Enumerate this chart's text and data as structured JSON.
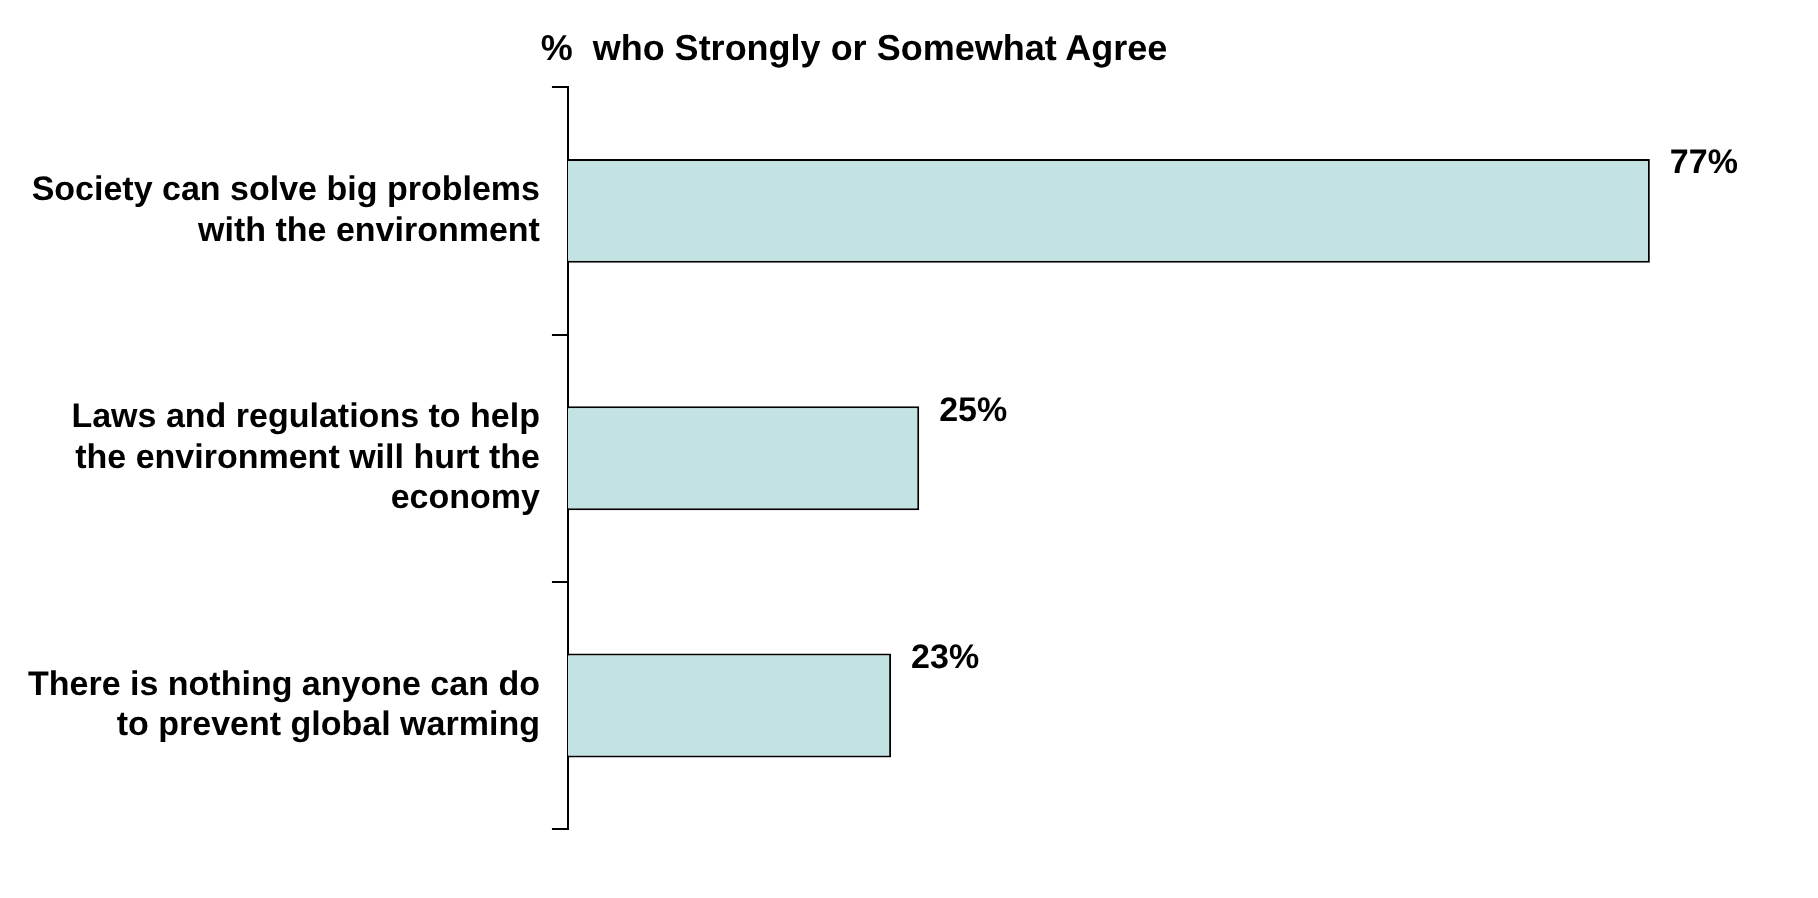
{
  "chart_data": {
    "type": "bar",
    "orientation": "horizontal",
    "title": "%  who Strongly or Somewhat Agree",
    "categories": [
      "Society can solve big problems with the environment",
      "Laws and regulations to help the environment will hurt the economy",
      "There is nothing anyone can do to prevent global warming"
    ],
    "values": [
      77,
      25,
      23
    ],
    "color": "#c3e2e2",
    "value_labels": [
      "77%",
      "25%",
      "23%"
    ],
    "legend": false
  }
}
